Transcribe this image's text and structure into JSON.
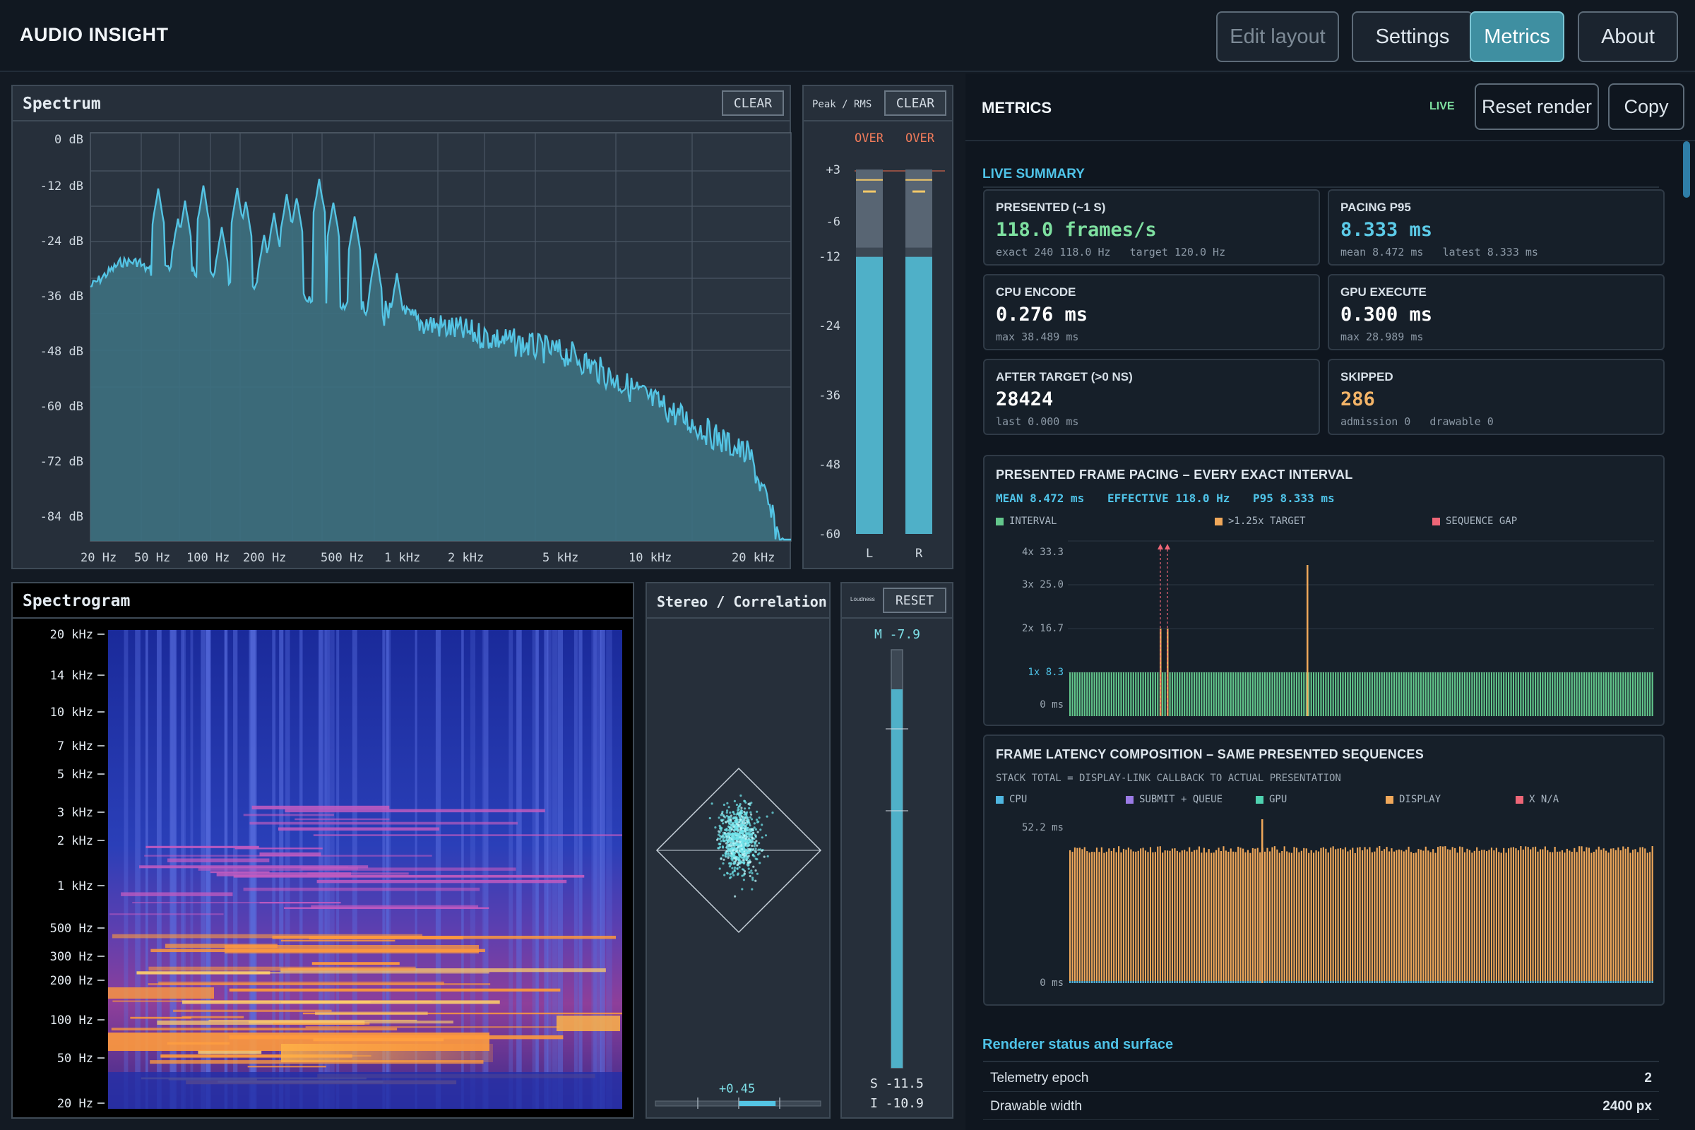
{
  "app": {
    "title": "AUDIO INSIGHT"
  },
  "toolbar": {
    "edit_layout": "Edit layout",
    "settings": "Settings",
    "metrics": "Metrics",
    "about": "About"
  },
  "spectrum": {
    "title": "Spectrum",
    "clear": "CLEAR",
    "y_labels": [
      "0 dB",
      "-12 dB",
      "-24 dB",
      "-36 dB",
      "-48 dB",
      "-60 dB",
      "-72 dB",
      "-84 dB"
    ],
    "x_labels": [
      "20 Hz",
      "50 Hz",
      "100 Hz",
      "200 Hz",
      "500 Hz",
      "1 kHz",
      "2 kHz",
      "5 kHz",
      "10 kHz",
      "20 kHz"
    ],
    "color": "#54c4e4"
  },
  "peak_rms": {
    "title": "Peak / RMS",
    "clear": "CLEAR",
    "over_l": "OVER",
    "over_r": "OVER",
    "scale": [
      "+3",
      "-6",
      "-12",
      "-24",
      "-36",
      "-48",
      "-60"
    ],
    "ch_l": "L",
    "ch_r": "R",
    "peak_db": -10.5,
    "rms_db": -12.1
  },
  "spectrogram": {
    "title": "Spectrogram",
    "y_labels": [
      "20 kHz",
      "14 kHz",
      "10 kHz",
      "7 kHz",
      "5 kHz",
      "3 kHz",
      "2 kHz",
      "1 kHz",
      "500 Hz",
      "300 Hz",
      "200 Hz",
      "100 Hz",
      "50 Hz",
      "20 Hz"
    ]
  },
  "stereo": {
    "title": "Stereo / Correlation",
    "correlation": "+0.45",
    "correlation_value": 0.45
  },
  "loudness": {
    "title": "Loudness",
    "reset": "RESET",
    "momentary": "M -7.9",
    "short_term": "S -11.5",
    "integrated": "I -10.9"
  },
  "metrics": {
    "title": "METRICS",
    "live": "LIVE",
    "reset_render": "Reset render",
    "copy": "Copy",
    "summary_title": "LIVE SUMMARY",
    "cards": [
      {
        "label": "PRESENTED (~1 S)",
        "value": "118.0 frames/s",
        "sub": "exact 240 118.0 Hz   target 120.0 Hz",
        "color": "#7ee0a0"
      },
      {
        "label": "PACING P95",
        "value": "8.333 ms",
        "sub": "mean 8.472 ms   latest 8.333 ms",
        "color": "#5ccbe8"
      },
      {
        "label": "CPU ENCODE",
        "value": "0.276 ms",
        "sub": "max 38.489 ms",
        "color": "#ffffff"
      },
      {
        "label": "GPU EXECUTE",
        "value": "0.300 ms",
        "sub": "max 28.989 ms",
        "color": "#ffffff"
      },
      {
        "label": "AFTER TARGET (>0 NS)",
        "value": "28424",
        "sub": "last 0.000 ms",
        "color": "#ffffff"
      },
      {
        "label": "SKIPPED",
        "value": "286",
        "sub": "admission 0   drawable 0",
        "color": "#f3b468"
      }
    ],
    "pacing": {
      "title": "PRESENTED FRAME PACING – EVERY EXACT INTERVAL",
      "mean": "MEAN 8.472 ms",
      "effective": "EFFECTIVE 118.0 Hz",
      "p95": "P95 8.333 ms",
      "legend": [
        "INTERVAL",
        ">1.25x TARGET",
        "SEQUENCE GAP"
      ],
      "legend_colors": [
        "#63c78c",
        "#f0a85a",
        "#ee6677"
      ],
      "y_labels": [
        "4x 33.3",
        "3x 25.0",
        "2x 16.7",
        "1x 8.3",
        "0 ms"
      ]
    },
    "latency": {
      "title": "FRAME LATENCY COMPOSITION – SAME PRESENTED SEQUENCES",
      "subtitle": "STACK TOTAL = DISPLAY-LINK CALLBACK TO ACTUAL PRESENTATION",
      "legend": [
        "CPU",
        "SUBMIT + QUEUE",
        "GPU",
        "DISPLAY",
        "X N/A"
      ],
      "legend_colors": [
        "#4fb6e0",
        "#9b7be6",
        "#4fd2b0",
        "#f0a85a",
        "#ee6677"
      ],
      "y_top": "52.2 ms",
      "y_bottom": "0 ms"
    },
    "renderer_title": "Renderer status and surface",
    "renderer_rows": [
      {
        "key": "Telemetry epoch",
        "value": "2"
      },
      {
        "key": "Drawable width",
        "value": "2400 px"
      }
    ]
  }
}
